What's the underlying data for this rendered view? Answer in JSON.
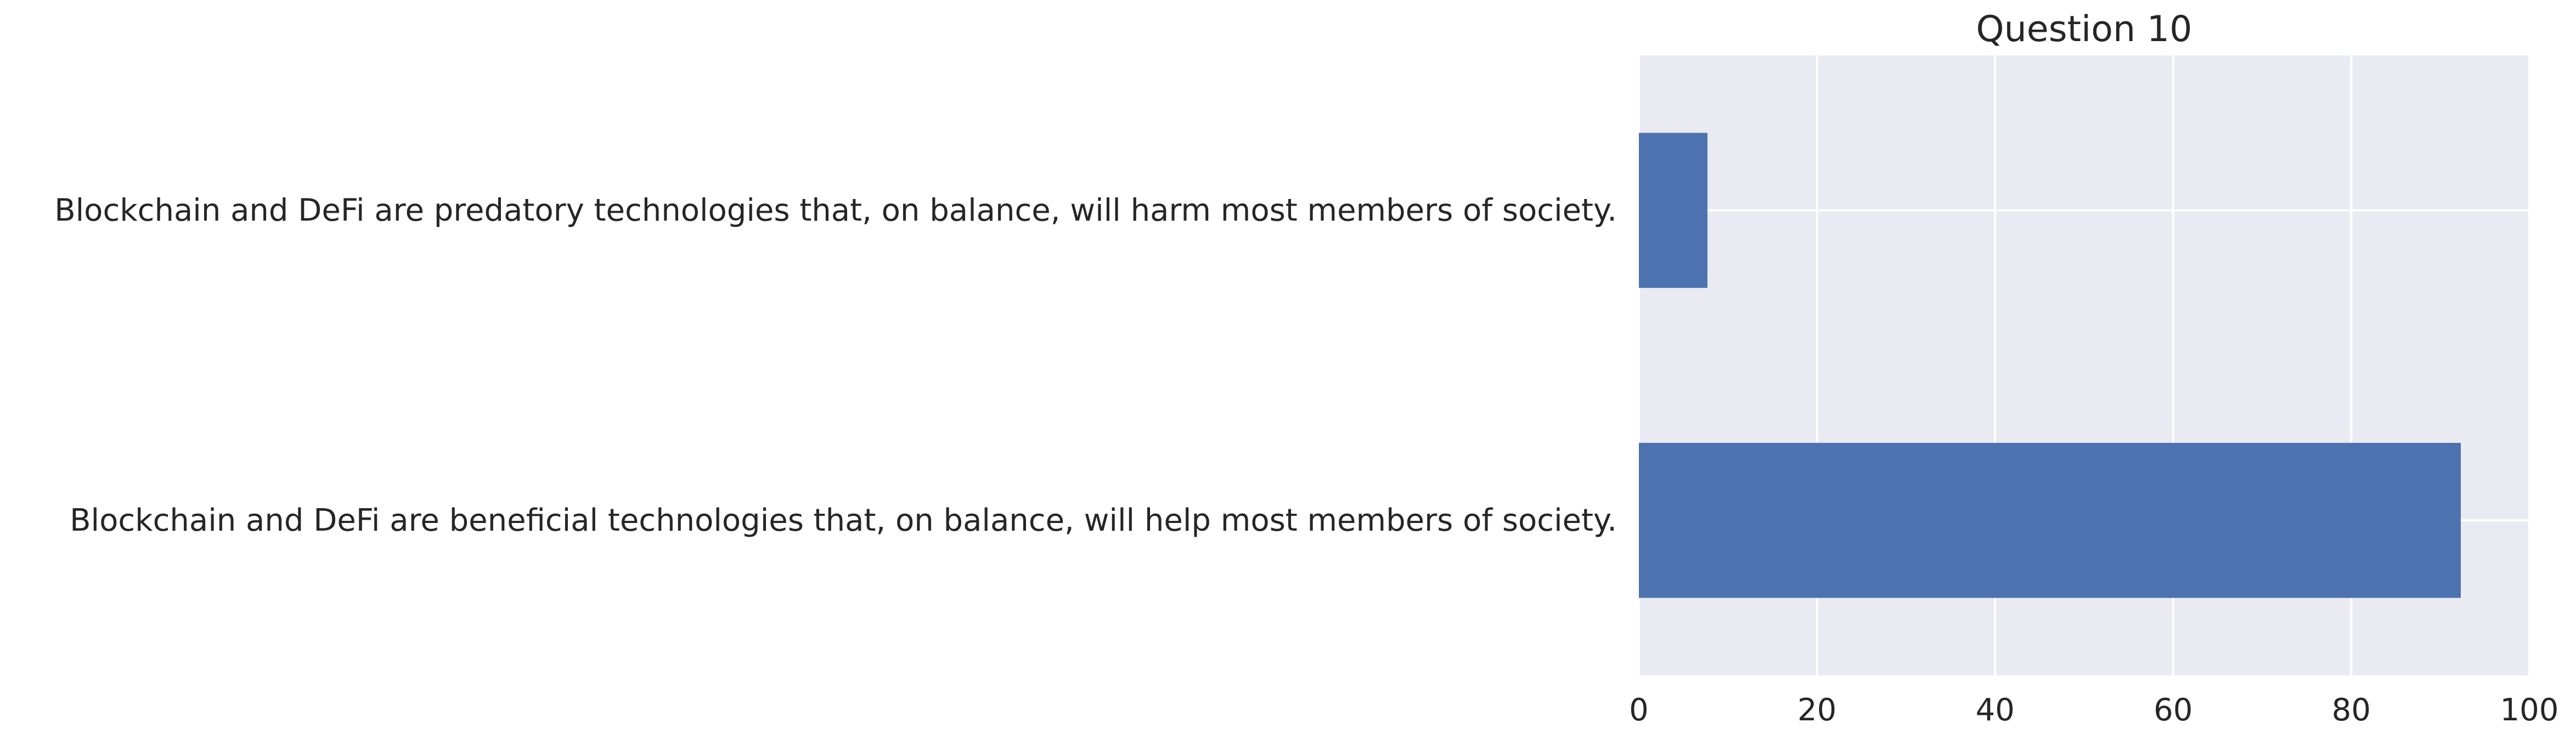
{
  "chart_data": {
    "type": "bar",
    "orientation": "horizontal",
    "title": "Question 10",
    "xlabel": "",
    "ylabel": "",
    "categories": [
      "Blockchain and DeFi are beneficial technologies that, on balance, will help most members of society.",
      "Blockchain and DeFi are predatory technologies that, on balance, will harm most members of society."
    ],
    "values": [
      92.3,
      7.7
    ],
    "xlim": [
      0,
      100
    ],
    "xticks": [
      0,
      20,
      40,
      60,
      80,
      100
    ],
    "grid": true,
    "legend": "none",
    "colors": {
      "bar": "#4c72b0",
      "plot_background": "#eaeaf2",
      "grid": "#ffffff",
      "text": "#262626"
    }
  }
}
